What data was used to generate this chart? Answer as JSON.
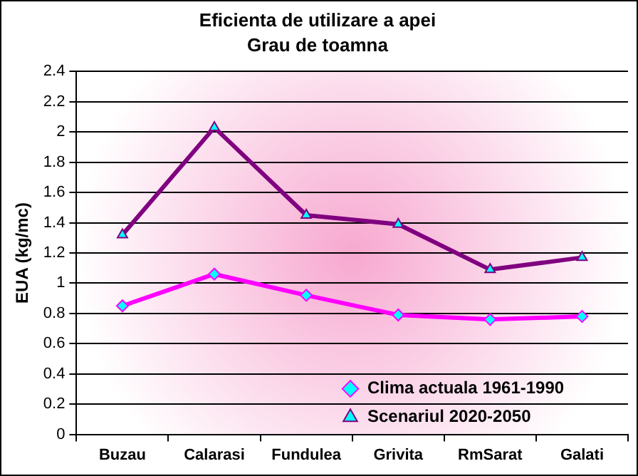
{
  "chart_data": {
    "type": "line",
    "title": "Eficienta de utilizare a apei",
    "subtitle": "Grau de toamna",
    "ylabel": "EUA (kg/mc)",
    "categories": [
      "Buzau",
      "Calarasi",
      "Fundulea",
      "Grivita",
      "RmSarat",
      "Galati"
    ],
    "series": [
      {
        "name": "Clima actuala 1961-1990",
        "color": "#ff00ff",
        "marker": "diamond",
        "values": [
          0.85,
          1.06,
          0.92,
          0.79,
          0.76,
          0.78
        ]
      },
      {
        "name": "Scenariul 2020-2050",
        "color": "#800080",
        "marker": "triangle",
        "values": [
          1.32,
          2.03,
          1.45,
          1.39,
          1.09,
          1.17
        ]
      }
    ],
    "ylim": [
      0,
      2.4
    ],
    "yticks": [
      {
        "value": 0,
        "label": "0"
      },
      {
        "value": 0.2,
        "label": "0.2"
      },
      {
        "value": 0.4,
        "label": "0.4"
      },
      {
        "value": 0.6,
        "label": "0.6"
      },
      {
        "value": 0.8,
        "label": "0.8"
      },
      {
        "value": 1,
        "label": "1"
      },
      {
        "value": 1.2,
        "label": "1.2"
      },
      {
        "value": 1.4,
        "label": "1.4"
      },
      {
        "value": 1.6,
        "label": "1.6"
      },
      {
        "value": 1.8,
        "label": "1.8"
      },
      {
        "value": 2,
        "label": "2"
      },
      {
        "value": 2.2,
        "label": "2.2"
      },
      {
        "value": 2.4,
        "label": "2.4"
      }
    ],
    "grid": "y",
    "legend": "bottom",
    "line_style": "solid"
  }
}
